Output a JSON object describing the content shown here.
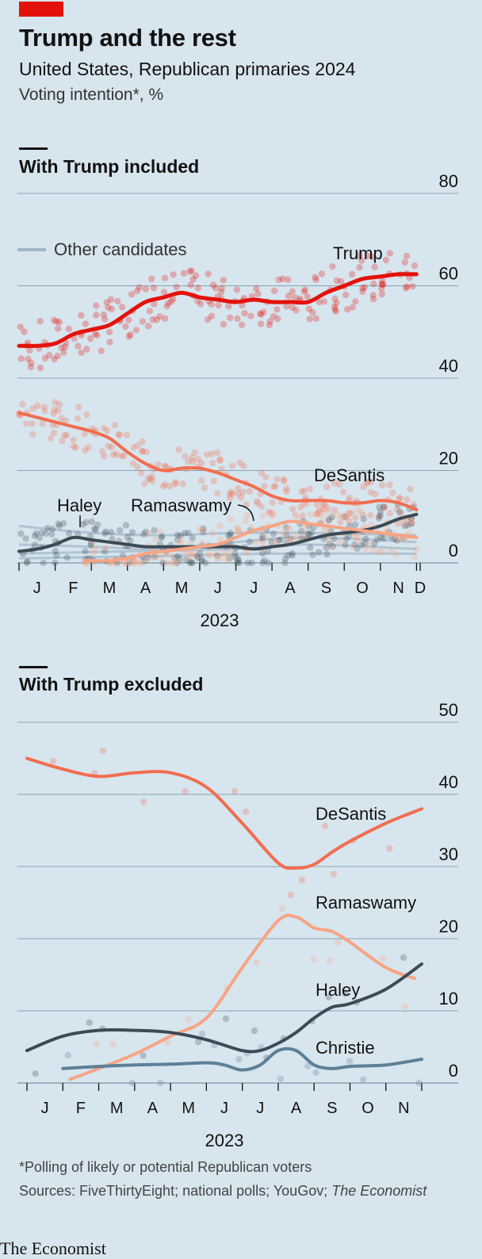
{
  "header": {
    "title": "Trump and the rest",
    "subtitle": "United States, Republican primaries 2024",
    "unit": "Voting intention*, %"
  },
  "footer": {
    "note": "*Polling of likely or potential Republican voters",
    "sources_prefix": "Sources: FiveThirtyEight; national polls; YouGov; ",
    "sources_italic": "The Economist",
    "brand": "The Economist"
  },
  "colors": {
    "background": "#d7e5ee",
    "trump": "#e3120b",
    "desantis": "#f26d4f",
    "ramaswamy": "#f7a484",
    "haley": "#3c4a55",
    "christie": "#5d7f97",
    "others": "#9fb6c6",
    "grid": "#8aa2b2"
  },
  "chart_data": [
    {
      "type": "line",
      "title": "With Trump included",
      "xlabel": "2023",
      "ylim": [
        0,
        80
      ],
      "yticks": [
        0,
        20,
        40,
        60,
        80
      ],
      "xlim": [
        0,
        11.1
      ],
      "xticks": [
        {
          "label": "J",
          "pos": 0.5
        },
        {
          "label": "F",
          "pos": 1.5
        },
        {
          "label": "M",
          "pos": 2.5
        },
        {
          "label": "A",
          "pos": 3.5
        },
        {
          "label": "M",
          "pos": 4.5
        },
        {
          "label": "J",
          "pos": 5.5
        },
        {
          "label": "J",
          "pos": 6.5
        },
        {
          "label": "A",
          "pos": 7.5
        },
        {
          "label": "S",
          "pos": 8.5
        },
        {
          "label": "O",
          "pos": 9.5
        },
        {
          "label": "N",
          "pos": 10.5
        },
        {
          "label": "D",
          "pos": 11.1
        }
      ],
      "legend": {
        "label": "Other candidates",
        "position": "top-left"
      },
      "series": [
        {
          "name": "Trump",
          "key": "trump",
          "x": [
            0,
            0.5,
            1,
            1.5,
            2,
            2.5,
            3,
            3.5,
            4,
            4.5,
            5,
            5.5,
            6,
            6.5,
            7,
            7.5,
            8,
            8.5,
            9,
            9.5,
            10,
            10.5,
            11
          ],
          "values": [
            47,
            47,
            47.5,
            49.5,
            50.5,
            51.5,
            54,
            56.5,
            57.5,
            58.5,
            57.5,
            57,
            56.5,
            57,
            56.5,
            56.5,
            56.5,
            58.5,
            60,
            61.5,
            62,
            62.5,
            62.5
          ]
        },
        {
          "name": "DeSantis",
          "key": "desantis",
          "x": [
            0,
            0.5,
            1,
            1.5,
            2,
            2.5,
            3,
            3.5,
            4,
            4.5,
            5,
            5.5,
            6,
            6.5,
            7,
            7.5,
            8,
            8.5,
            9,
            9.5,
            10,
            10.5,
            11
          ],
          "values": [
            32.5,
            31.5,
            30.5,
            29.5,
            28.5,
            27,
            24,
            21.5,
            20,
            20.5,
            20.5,
            19.5,
            18,
            16.5,
            14.5,
            13.5,
            13.5,
            13.5,
            13,
            13,
            13.5,
            13,
            11.5
          ]
        },
        {
          "name": "Haley",
          "key": "haley",
          "x": [
            0,
            0.5,
            1,
            1.5,
            2,
            2.5,
            3,
            3.5,
            4,
            4.5,
            5,
            5.5,
            6,
            6.5,
            7,
            7.5,
            8,
            8.5,
            9,
            9.5,
            10,
            10.5,
            11
          ],
          "values": [
            2.5,
            3,
            4,
            5.5,
            5,
            4.5,
            4,
            3.5,
            3.5,
            3.5,
            3.5,
            3.5,
            3.5,
            3,
            3.5,
            4,
            5,
            6,
            6.5,
            7,
            8,
            9.5,
            10.5
          ]
        },
        {
          "name": "Ramaswamy",
          "key": "ramaswamy",
          "x": [
            1.8,
            2.5,
            3,
            3.5,
            4,
            4.5,
            5,
            5.5,
            6,
            6.5,
            7,
            7.5,
            8,
            8.5,
            9,
            9.5,
            10,
            10.5,
            11
          ],
          "values": [
            0.5,
            0.5,
            1,
            2,
            2.5,
            3,
            3.5,
            4,
            5.5,
            7,
            8,
            9,
            8.5,
            8,
            7.5,
            7,
            6.5,
            6,
            5.5
          ]
        }
      ]
    },
    {
      "type": "line",
      "title": "With Trump excluded",
      "xlabel": "2023",
      "ylim": [
        0,
        50
      ],
      "yticks": [
        0,
        10,
        20,
        30,
        40,
        50
      ],
      "xlim": [
        0,
        11
      ],
      "xticks": [
        {
          "label": "J",
          "pos": 0.5
        },
        {
          "label": "F",
          "pos": 1.5
        },
        {
          "label": "M",
          "pos": 2.5
        },
        {
          "label": "A",
          "pos": 3.5
        },
        {
          "label": "M",
          "pos": 4.5
        },
        {
          "label": "J",
          "pos": 5.5
        },
        {
          "label": "J",
          "pos": 6.5
        },
        {
          "label": "A",
          "pos": 7.5
        },
        {
          "label": "S",
          "pos": 8.5
        },
        {
          "label": "O",
          "pos": 9.5
        },
        {
          "label": "N",
          "pos": 10.5
        }
      ],
      "series": [
        {
          "name": "DeSantis",
          "key": "desantis",
          "x": [
            0,
            1,
            2,
            3,
            4,
            5,
            6,
            7,
            7.5,
            8,
            8.5,
            9,
            10,
            11
          ],
          "values": [
            45,
            43.5,
            42.5,
            43,
            43,
            41,
            36,
            30.5,
            29.8,
            30.3,
            32,
            33.5,
            36,
            38
          ]
        },
        {
          "name": "Ramaswamy",
          "key": "ramaswamy",
          "x": [
            1.2,
            2,
            3,
            4,
            5,
            6,
            7,
            7.5,
            8,
            8.5,
            9,
            10,
            10.8
          ],
          "values": [
            0.5,
            2,
            4,
            6.5,
            9,
            16,
            22.5,
            23,
            21.5,
            21,
            19.5,
            16,
            14.5
          ]
        },
        {
          "name": "Haley",
          "key": "haley",
          "x": [
            0,
            1,
            2,
            3,
            4,
            5,
            6,
            6.5,
            7,
            7.5,
            8,
            8.5,
            9,
            10,
            11
          ],
          "values": [
            4.5,
            6.5,
            7.3,
            7.3,
            7,
            6,
            4.5,
            4.5,
            5.5,
            7,
            9,
            10.5,
            11,
            13,
            16.5
          ]
        },
        {
          "name": "Christie",
          "key": "christie",
          "x": [
            1,
            2,
            3,
            4,
            5,
            5.5,
            6,
            6.5,
            7,
            7.5,
            8,
            8.5,
            9,
            10,
            11
          ],
          "values": [
            2,
            2.3,
            2.5,
            2.6,
            2.8,
            2.5,
            1.8,
            2.5,
            4.5,
            4.5,
            2.5,
            2,
            2.3,
            2.5,
            3.3
          ]
        }
      ]
    }
  ]
}
